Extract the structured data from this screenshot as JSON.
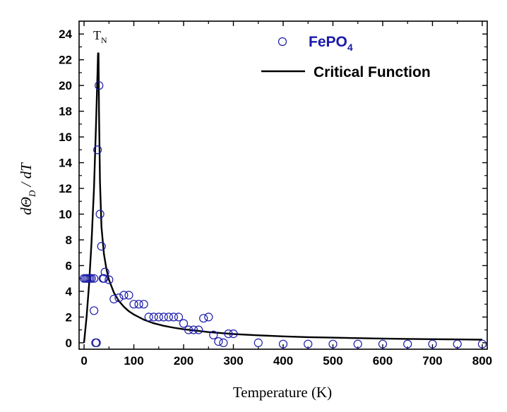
{
  "chart_data": {
    "type": "scatter",
    "xlabel": "Temperature (K)",
    "ylabel": {
      "prefix": "dΘ",
      "sub": "D",
      "suffix": " / dT"
    },
    "xlim": [
      -10,
      810
    ],
    "ylim": [
      -0.5,
      25
    ],
    "x_ticks": [
      0,
      100,
      200,
      300,
      400,
      500,
      600,
      700,
      800
    ],
    "y_ticks": [
      0,
      2,
      4,
      6,
      8,
      10,
      12,
      14,
      16,
      18,
      20,
      22,
      24
    ],
    "grid": false,
    "legend_position": "top-right",
    "annotation": {
      "text": "T",
      "sub": "N",
      "x": 30,
      "y": 23
    },
    "colors": {
      "scatter": "#1a1aa8",
      "line": "#000000"
    },
    "series": [
      {
        "name": "FePO",
        "name_sub": "4",
        "type": "scatter",
        "x": [
          0,
          3,
          6,
          9,
          12,
          15,
          20,
          20,
          23,
          25,
          27,
          30,
          32,
          35,
          38,
          40,
          42,
          50,
          60,
          70,
          80,
          90,
          100,
          110,
          120,
          130,
          140,
          150,
          160,
          170,
          180,
          190,
          200,
          210,
          220,
          230,
          240,
          250,
          260,
          270,
          280,
          290,
          300,
          350,
          400,
          450,
          500,
          550,
          600,
          650,
          700,
          750,
          800
        ],
        "y": [
          5,
          5,
          5,
          5,
          5,
          5,
          5,
          2.5,
          0,
          0,
          15,
          20,
          10,
          7.5,
          5,
          5,
          5.5,
          4.9,
          3.4,
          3.5,
          3.7,
          3.7,
          3,
          3,
          3,
          2,
          2,
          2,
          2,
          2,
          2,
          2,
          1.5,
          1,
          1,
          1,
          1.9,
          2,
          0.6,
          0.1,
          0,
          0.7,
          0.7,
          0,
          -0.1,
          -0.1,
          -0.1,
          -0.1,
          -0.1,
          -0.1,
          -0.1,
          -0.1,
          -0.1
        ]
      },
      {
        "name": "Critical Function",
        "type": "line",
        "x": [
          0,
          5,
          10,
          15,
          20,
          24,
          27,
          28,
          28.5,
          29,
          30,
          32,
          35,
          40,
          45,
          50,
          60,
          70,
          80,
          90,
          100,
          120,
          140,
          160,
          180,
          200,
          250,
          300,
          350,
          400,
          450,
          500,
          550,
          600,
          650,
          700,
          750,
          800
        ],
        "y": [
          0,
          2,
          4.5,
          7.8,
          12,
          17,
          21,
          22.5,
          22.5,
          22.5,
          18,
          12.5,
          9,
          6.9,
          5.7,
          4.9,
          3.9,
          3.25,
          2.8,
          2.45,
          2.2,
          1.8,
          1.52,
          1.32,
          1.17,
          1.05,
          0.83,
          0.68,
          0.58,
          0.5,
          0.44,
          0.4,
          0.36,
          0.33,
          0.3,
          0.28,
          0.26,
          0.24
        ]
      }
    ]
  }
}
